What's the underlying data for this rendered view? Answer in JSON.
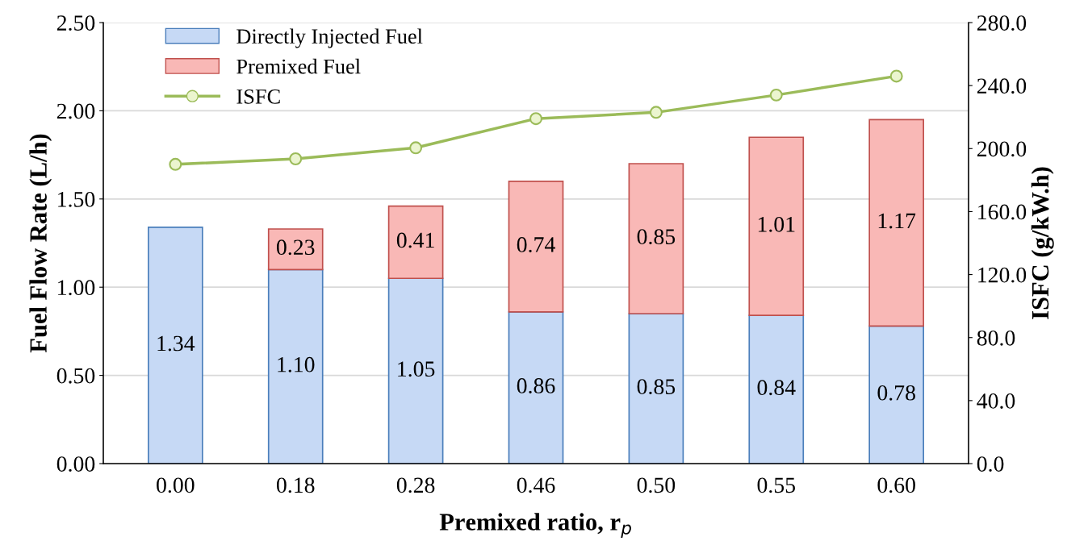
{
  "chart_data": {
    "type": "bar",
    "stacked": true,
    "xlabel": "Premixed ratio, r$_{p}$",
    "ylabel": "Fuel Flow Rate (L/h)",
    "y2label": "ISFC (g/kW.h)",
    "categories": [
      "0.00",
      "0.18",
      "0.28",
      "0.46",
      "0.50",
      "0.55",
      "0.60"
    ],
    "series": [
      {
        "name": "Directly Injected Fuel",
        "color": "#c6d9f5",
        "values": [
          1.34,
          1.1,
          1.05,
          0.86,
          0.85,
          0.84,
          0.78
        ],
        "value_labels": [
          "1.34",
          "1.10",
          "1.05",
          "0.86",
          "0.85",
          "0.84",
          "0.78"
        ]
      },
      {
        "name": "Premixed Fuel",
        "color": "#f9b8b6",
        "values": [
          null,
          0.23,
          0.41,
          0.74,
          0.85,
          1.01,
          1.17
        ],
        "value_labels": [
          null,
          "0.23",
          "0.41",
          "0.74",
          "0.85",
          "1.01",
          "1.17"
        ]
      },
      {
        "name": "ISFC",
        "type": "line",
        "axis": "y2",
        "color": "#9bbb59",
        "marker": "circle",
        "values": [
          190,
          193.5,
          200.5,
          219,
          223,
          234,
          246
        ]
      }
    ],
    "ylim": [
      0,
      2.5
    ],
    "yticks": [
      {
        "value": 0,
        "label": "0.00"
      },
      {
        "value": 0.5,
        "label": "0.50"
      },
      {
        "value": 1,
        "label": "1.00"
      },
      {
        "value": 1.5,
        "label": "1.50"
      },
      {
        "value": 2,
        "label": "2.00"
      },
      {
        "value": 2.5,
        "label": "2.50"
      }
    ],
    "y2lim": [
      0,
      280
    ],
    "y2ticks": [
      {
        "value": 0,
        "label": "0.0"
      },
      {
        "value": 40,
        "label": "40.0"
      },
      {
        "value": 80,
        "label": "80.0"
      },
      {
        "value": 120,
        "label": "120.0"
      },
      {
        "value": 160,
        "label": "160.0"
      },
      {
        "value": 200,
        "label": "200.0"
      },
      {
        "value": 240,
        "label": "240.0"
      },
      {
        "value": 280,
        "label": "280.0"
      }
    ],
    "grid": "y",
    "legend": "top left"
  }
}
